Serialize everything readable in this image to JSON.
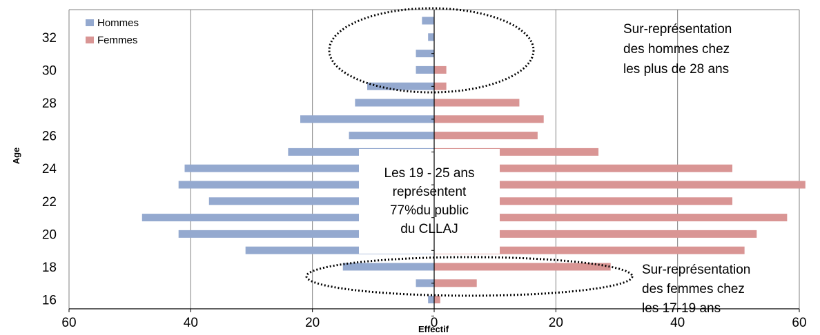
{
  "chart_data": {
    "type": "bar",
    "orientation": "horizontal",
    "subtype": "population-pyramid",
    "xlabel": "Effectif",
    "ylabel": "Age",
    "xlim": [
      -60,
      60
    ],
    "x_ticks": [
      -60,
      -40,
      -20,
      0,
      20,
      40,
      60
    ],
    "x_tick_labels": [
      "60",
      "40",
      "20",
      "0",
      "20",
      "40",
      "60"
    ],
    "y_ticks": [
      16,
      18,
      20,
      22,
      24,
      26,
      28,
      30,
      32
    ],
    "grid": "vertical",
    "legend_position": "top-left",
    "ages": [
      16,
      17,
      18,
      19,
      20,
      21,
      22,
      23,
      24,
      25,
      26,
      27,
      28,
      29,
      30,
      31,
      32,
      33
    ],
    "series": [
      {
        "name": "Hommes",
        "color": "#94a9cf",
        "side": "left",
        "values": [
          1,
          3,
          15,
          31,
          42,
          48,
          37,
          42,
          41,
          24,
          14,
          22,
          13,
          11,
          3,
          3,
          1,
          2
        ]
      },
      {
        "name": "Femmes",
        "color": "#d99594",
        "side": "right",
        "values": [
          1,
          7,
          29,
          51,
          53,
          58,
          49,
          61,
          49,
          27,
          17,
          18,
          14,
          2,
          2,
          0,
          0,
          0
        ]
      }
    ],
    "annotations": [
      {
        "id": "center",
        "lines": [
          "Les 19 - 25 ans",
          "représentent",
          "77%du public",
          "du CLLAJ"
        ]
      },
      {
        "id": "men",
        "lines": [
          "Sur-représentation",
          "des hommes chez",
          "les plus de 28 ans"
        ]
      },
      {
        "id": "women",
        "lines": [
          "Sur-représentation",
          "des femmes chez",
          "les 17-19 ans"
        ]
      }
    ]
  }
}
